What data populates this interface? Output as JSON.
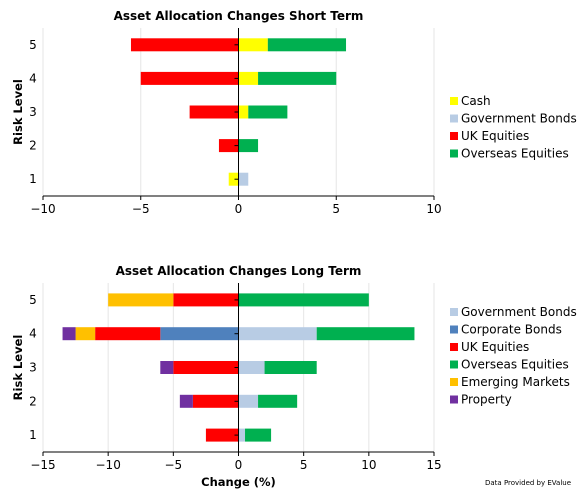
{
  "chart_data": [
    {
      "type": "bar",
      "orientation": "horizontal",
      "stacked": "diverging",
      "title": "Asset Allocation Changes Short Term",
      "xlabel": "",
      "ylabel": "Risk Level",
      "categories": [
        "1",
        "2",
        "3",
        "4",
        "5"
      ],
      "xlim": [
        -10,
        10
      ],
      "xticks": [
        -10,
        -5,
        0,
        5,
        10
      ],
      "grid": true,
      "legend_position": "right",
      "series": [
        {
          "name": "Cash",
          "color": "#FFFF00",
          "segments": [
            [
              -0.5,
              0
            ],
            [
              0,
              0
            ],
            [
              0,
              0.5
            ],
            [
              0,
              1.0
            ],
            [
              0,
              1.5
            ]
          ]
        },
        {
          "name": "Government Bonds",
          "color": "#B8CCE4",
          "segments": [
            [
              0,
              0.5
            ],
            [
              0,
              0
            ],
            [
              0,
              0
            ],
            [
              0,
              0
            ],
            [
              0,
              0
            ]
          ]
        },
        {
          "name": "UK Equities",
          "color": "#FF0000",
          "segments": [
            [
              0,
              0
            ],
            [
              -1.0,
              0
            ],
            [
              -2.5,
              0
            ],
            [
              -5.0,
              0
            ],
            [
              -5.5,
              0
            ]
          ]
        },
        {
          "name": "Overseas Equities",
          "color": "#00B050",
          "segments": [
            [
              0,
              0
            ],
            [
              0,
              1.0
            ],
            [
              0.5,
              2.5
            ],
            [
              1.0,
              5.0
            ],
            [
              1.5,
              5.5
            ]
          ]
        }
      ]
    },
    {
      "type": "bar",
      "orientation": "horizontal",
      "stacked": "diverging",
      "title": "Asset Allocation Changes Long Term",
      "xlabel": "Change (%)",
      "ylabel": "Risk Level",
      "categories": [
        "1",
        "2",
        "3",
        "4",
        "5"
      ],
      "xlim": [
        -15,
        15
      ],
      "xticks": [
        -15,
        -10,
        -5,
        0,
        5,
        10,
        15
      ],
      "grid": true,
      "legend_position": "right",
      "series": [
        {
          "name": "Government Bonds",
          "color": "#B8CCE4",
          "segments": [
            [
              0,
              0.5
            ],
            [
              0,
              1.5
            ],
            [
              0,
              2.0
            ],
            [
              0,
              6.0
            ],
            [
              0,
              0
            ]
          ]
        },
        {
          "name": "Corporate Bonds",
          "color": "#4F81BD",
          "segments": [
            [
              0,
              0
            ],
            [
              0,
              0
            ],
            [
              0,
              0
            ],
            [
              -6.0,
              0
            ],
            [
              0,
              0
            ]
          ]
        },
        {
          "name": "UK Equities",
          "color": "#FF0000",
          "segments": [
            [
              -2.5,
              0
            ],
            [
              -3.5,
              0
            ],
            [
              -5.0,
              0
            ],
            [
              -11.0,
              -6.0
            ],
            [
              -5.0,
              0
            ]
          ]
        },
        {
          "name": "Overseas Equities",
          "color": "#00B050",
          "segments": [
            [
              0.5,
              2.5
            ],
            [
              1.5,
              4.5
            ],
            [
              2.0,
              6.0
            ],
            [
              6.0,
              13.5
            ],
            [
              0,
              10.0
            ]
          ]
        },
        {
          "name": "Emerging Markets",
          "color": "#FFC000",
          "segments": [
            [
              0,
              0
            ],
            [
              0,
              0
            ],
            [
              0,
              0
            ],
            [
              -12.5,
              -11.0
            ],
            [
              -10.0,
              -5.0
            ]
          ]
        },
        {
          "name": "Property",
          "color": "#7030A0",
          "segments": [
            [
              0,
              0
            ],
            [
              -4.5,
              -3.5
            ],
            [
              -6.0,
              -5.0
            ],
            [
              -13.5,
              -12.5
            ],
            [
              0,
              0
            ]
          ]
        }
      ]
    }
  ],
  "credit": "Data Provided by EValue"
}
